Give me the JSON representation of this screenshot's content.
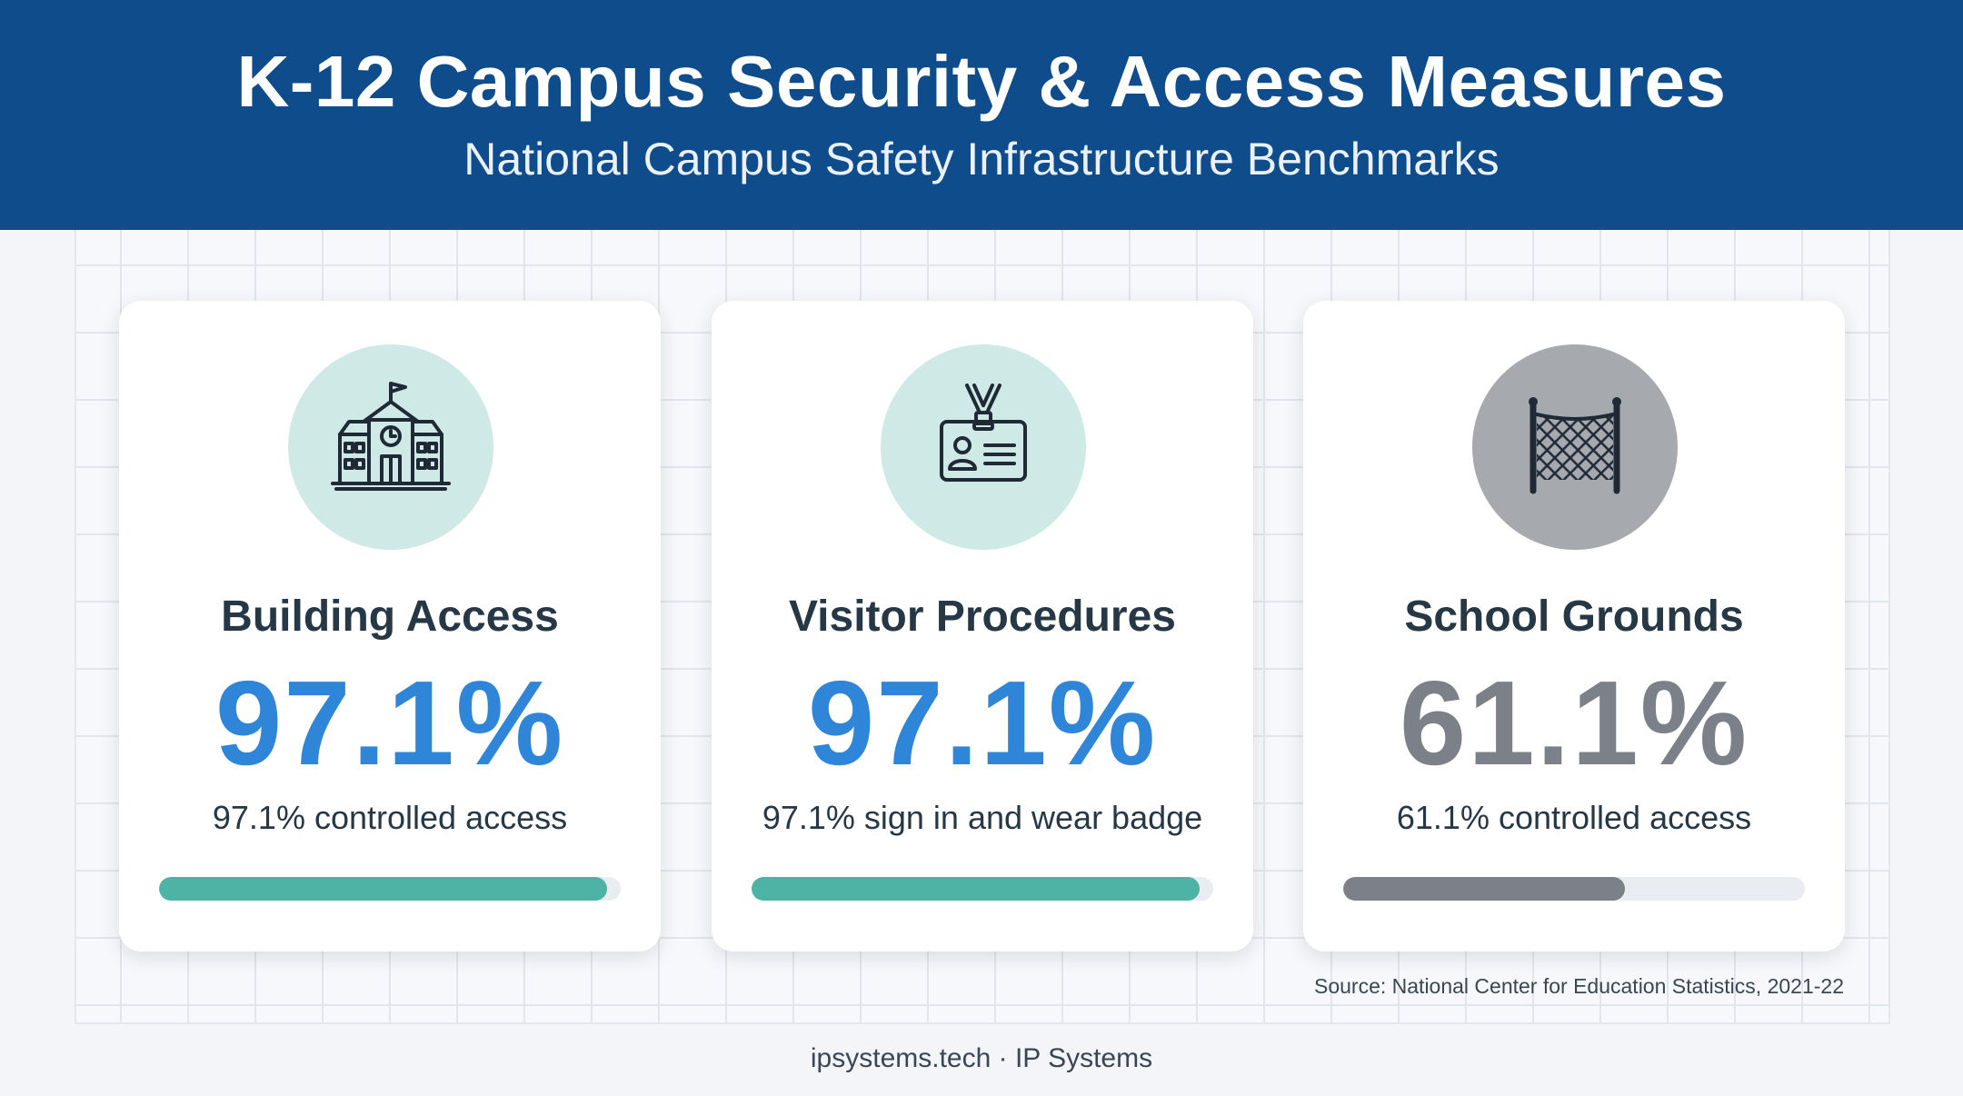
{
  "header": {
    "title": "K-12 Campus Security & Access Measures",
    "subtitle": "National Campus Safety Infrastructure Benchmarks"
  },
  "cards": [
    {
      "title": "Building Access",
      "value": "97.1%",
      "description": "97.1% controlled access",
      "progress": 0.971,
      "icon": "school-building-icon",
      "accent": "#2f86d9",
      "bar_color": "#4db3a4",
      "icon_bg": "#cfeae6"
    },
    {
      "title": "Visitor Procedures",
      "value": "97.1%",
      "description": "97.1% sign in and wear badge",
      "progress": 0.971,
      "icon": "id-badge-icon",
      "accent": "#2f86d9",
      "bar_color": "#4db3a4",
      "icon_bg": "#cfeae6"
    },
    {
      "title": "School Grounds",
      "value": "61.1%",
      "description": "61.1% controlled access",
      "progress": 0.611,
      "icon": "fence-icon",
      "accent": "#7c8189",
      "bar_color": "#7c8189",
      "icon_bg": "#a6a9ae"
    }
  ],
  "source": "Source: National Center for Education Statistics, 2021-22",
  "footer": "ipsystems.tech · IP Systems"
}
